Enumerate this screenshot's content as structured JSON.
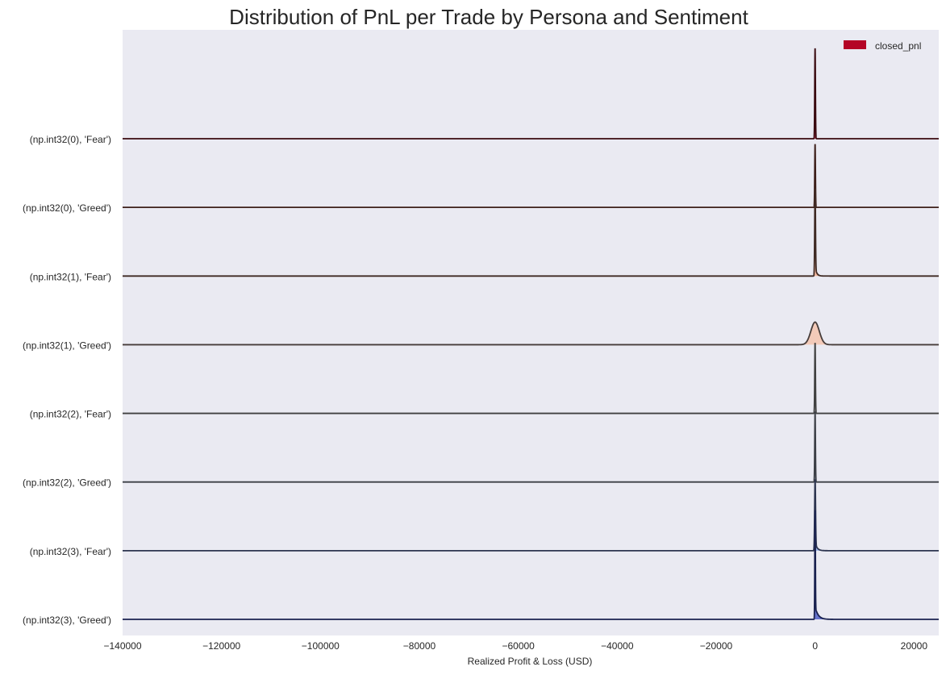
{
  "chart_data": {
    "type": "area",
    "subtype": "ridgeline",
    "title": "Distribution of PnL per Trade by Persona and Sentiment",
    "xlabel": "Realized Profit & Loss (USD)",
    "ylabel": "",
    "xlim": [
      -140000,
      25000
    ],
    "xticks": [
      -140000,
      -120000,
      -100000,
      -80000,
      -60000,
      -40000,
      -20000,
      0,
      20000
    ],
    "xtick_labels": [
      "−140000",
      "−120000",
      "−100000",
      "−80000",
      "−60000",
      "−40000",
      "−20000",
      "0",
      "20000"
    ],
    "grid": false,
    "background": "#eaeaf2",
    "legend": {
      "position": "top-right",
      "entries": [
        {
          "name": "closed_pnl",
          "color": "#b40426"
        }
      ]
    },
    "series": [
      {
        "name": "(np.int32(0), 'Fear')",
        "fill": "#b40426",
        "line": "#3a0a10",
        "peak_x": 0,
        "peak_height": 1.0,
        "width": 70,
        "tail": 0
      },
      {
        "name": "(np.int32(0), 'Greed')",
        "fill": "#d5573e",
        "line": "#3d1f1a",
        "peak_x": 0,
        "peak_height": 0.7,
        "width": 70,
        "tail": 0
      },
      {
        "name": "(np.int32(1), 'Fear')",
        "fill": "#f4a582",
        "line": "#3f2a24",
        "peak_x": 0,
        "peak_height": 0.95,
        "width": 80,
        "tail": 300
      },
      {
        "name": "(np.int32(1), 'Greed')",
        "fill": "#f6bfa6",
        "line": "#463c3a",
        "peak_x": 0,
        "peak_height": 0.25,
        "width": 850,
        "tail": 0
      },
      {
        "name": "(np.int32(2), 'Fear')",
        "fill": "#dcdcdc",
        "line": "#404040",
        "peak_x": 0,
        "peak_height": 0.78,
        "width": 70,
        "tail": 0
      },
      {
        "name": "(np.int32(2), 'Greed')",
        "fill": "#c3d4ee",
        "line": "#3c3f46",
        "peak_x": 0,
        "peak_height": 0.78,
        "width": 70,
        "tail": 0
      },
      {
        "name": "(np.int32(3), 'Fear')",
        "fill": "#8aa8ea",
        "line": "#2d3550",
        "peak_x": 0,
        "peak_height": 0.78,
        "width": 90,
        "tail": 400
      },
      {
        "name": "(np.int32(3), 'Greed')",
        "fill": "#3b4cc0",
        "line": "#1a2250",
        "peak_x": 0,
        "peak_height": 1.2,
        "width": 60,
        "tail": 600
      }
    ]
  }
}
